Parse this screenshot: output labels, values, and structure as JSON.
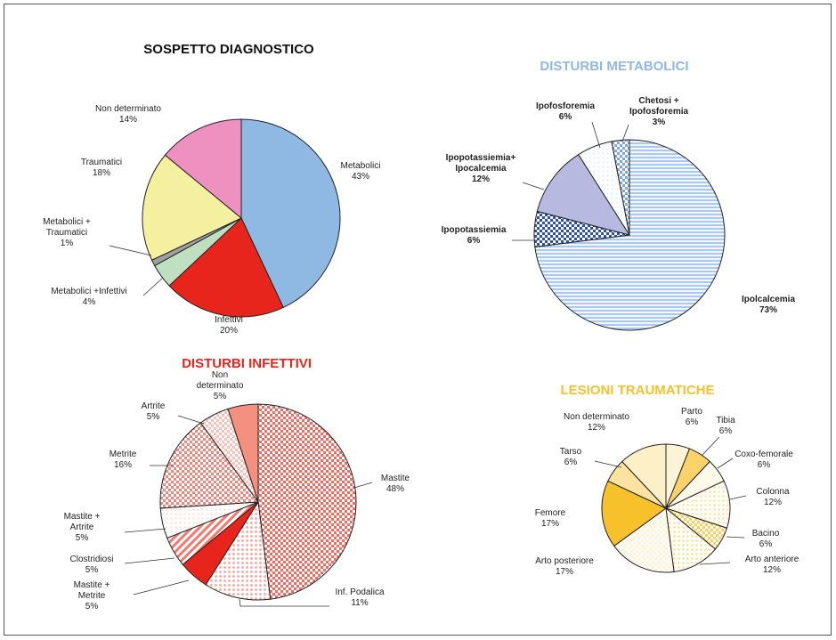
{
  "chart_data": [
    {
      "type": "pie",
      "title": "SOSPETTO DIAGNOSTICO",
      "title_color": "#111111",
      "slices": [
        {
          "label": "Metabolici",
          "value": 43,
          "value_label": "43%",
          "color": "#8fb8e2",
          "pattern": "solid"
        },
        {
          "label": "Infettivi",
          "value": 20,
          "value_label": "20%",
          "color": "#e8251c",
          "pattern": "solid"
        },
        {
          "label": "Metabolici +Infettivi",
          "value": 4,
          "value_label": "4%",
          "color": "#bfe0c0",
          "pattern": "solid"
        },
        {
          "label": "Metabolici + Traumatici",
          "value": 1,
          "value_label": "1%",
          "color": "#a0a0a0",
          "pattern": "solid"
        },
        {
          "label": "Traumatici",
          "value": 18,
          "value_label": "18%",
          "color": "#f5f0a0",
          "pattern": "solid"
        },
        {
          "label": "Non determinato",
          "value": 14,
          "value_label": "14%",
          "color": "#ee90c0",
          "pattern": "solid"
        }
      ]
    },
    {
      "type": "pie",
      "title": "DISTURBI METABOLICI",
      "title_color": "#8fb8e2",
      "slices": [
        {
          "label": "Ipolcalcemia",
          "value": 73,
          "value_label": "73%",
          "color": "#a9c9ef",
          "pattern": "hstripes"
        },
        {
          "label": "Ipopotassiemia",
          "value": 6,
          "value_label": "6%",
          "color": "#2f4fb0",
          "pattern": "checker"
        },
        {
          "label": "Ipopotassiemia+ Ipocalcemia",
          "value": 12,
          "value_label": "12%",
          "color": "#b7b9e0",
          "pattern": "solid"
        },
        {
          "label": "Ipofosforemia",
          "value": 6,
          "value_label": "6%",
          "color": "#eef3fb",
          "pattern": "dots"
        },
        {
          "label": "Chetosi + Ipofosforemia",
          "value": 3,
          "value_label": "3%",
          "color": "#7fa7e0",
          "pattern": "checker"
        }
      ]
    },
    {
      "type": "pie",
      "title": "DISTURBI INFETTIVI",
      "title_color": "#e8251c",
      "slices": [
        {
          "label": "Mastite",
          "value": 48,
          "value_label": "48%",
          "color": "#f26a5e",
          "pattern": "checker"
        },
        {
          "label": "Inf. Podalica",
          "value": 11,
          "value_label": "11%",
          "color": "#f5a59c",
          "pattern": "dots"
        },
        {
          "label": "Mastite + Metrite",
          "value": 5,
          "value_label": "5%",
          "color": "#e8251c",
          "pattern": "solid"
        },
        {
          "label": "Clostridiosi",
          "value": 5,
          "value_label": "5%",
          "color": "#f27a6e",
          "pattern": "dstripes"
        },
        {
          "label": "Mastite + Artrite",
          "value": 5,
          "value_label": "5%",
          "color": "#fde7e4",
          "pattern": "dots"
        },
        {
          "label": "Metrite",
          "value": 16,
          "value_label": "16%",
          "color": "#f0877c",
          "pattern": "checker"
        },
        {
          "label": "Artrite",
          "value": 5,
          "value_label": "5%",
          "color": "#f8c0b8",
          "pattern": "checker"
        },
        {
          "label": "Non determinato",
          "value": 5,
          "value_label": "5%",
          "color": "#f3907f",
          "pattern": "solid"
        }
      ]
    },
    {
      "type": "pie",
      "title": "LESIONI TRAUMATICHE",
      "title_color": "#f6c12b",
      "slices": [
        {
          "label": "Parto",
          "value": 6,
          "value_label": "6%",
          "color": "#fdf3d6",
          "pattern": "solid"
        },
        {
          "label": "Tibia",
          "value": 6,
          "value_label": "6%",
          "color": "#fbd36a",
          "pattern": "solid"
        },
        {
          "label": "Coxo-femorale",
          "value": 6,
          "value_label": "6%",
          "color": "#fff9ea",
          "pattern": "solid"
        },
        {
          "label": "Colonna",
          "value": 12,
          "value_label": "12%",
          "color": "#fde7a8",
          "pattern": "dots"
        },
        {
          "label": "Bacino",
          "value": 6,
          "value_label": "6%",
          "color": "#f8d060",
          "pattern": "checker"
        },
        {
          "label": "Arto anteriore",
          "value": 12,
          "value_label": "12%",
          "color": "#fce49a",
          "pattern": "dots"
        },
        {
          "label": "Arto posteriore",
          "value": 17,
          "value_label": "17%",
          "color": "#fef3d8",
          "pattern": "checker"
        },
        {
          "label": "Femore",
          "value": 17,
          "value_label": "17%",
          "color": "#f6c12b",
          "pattern": "solid"
        },
        {
          "label": "Tarso",
          "value": 6,
          "value_label": "6%",
          "color": "#fde3a0",
          "pattern": "solid"
        },
        {
          "label": "Non determinato",
          "value": 12,
          "value_label": "12%",
          "color": "#fdf0c8",
          "pattern": "solid"
        }
      ]
    }
  ]
}
